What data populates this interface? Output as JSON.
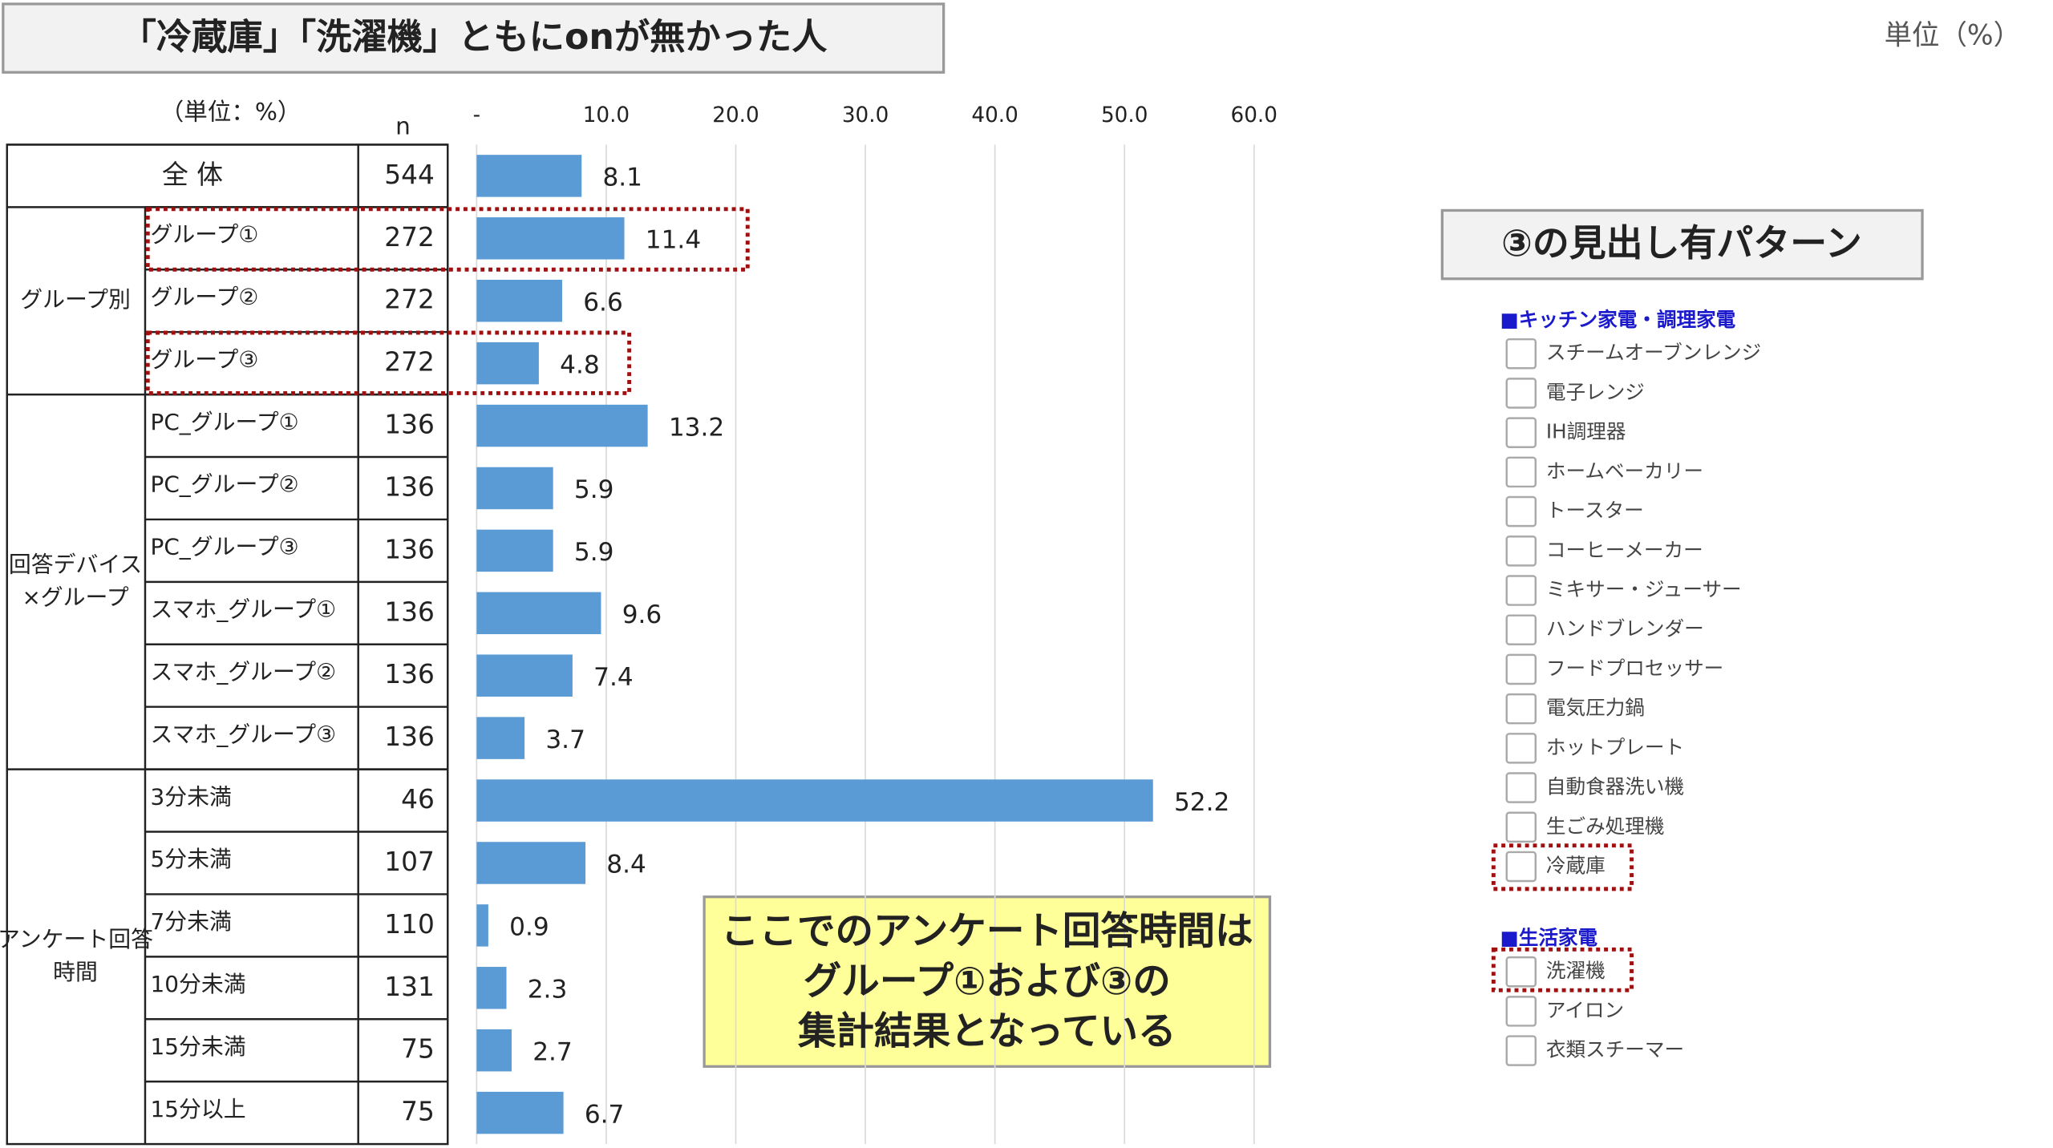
{
  "header": {
    "title": "「冷蔵庫」「洗濯機」ともにonが無かった人",
    "unit": "単位（%）"
  },
  "table": {
    "unit_label": "（単位：%）",
    "n_label": "n",
    "n": [
      544,
      272,
      272,
      272,
      136,
      136,
      136,
      136,
      136,
      136,
      46,
      107,
      110,
      131,
      75,
      75
    ],
    "groups": [
      {
        "lines": [
          "グループ別"
        ]
      },
      {
        "lines": [
          "回答デバイス",
          "×グループ"
        ]
      },
      {
        "lines": [
          "アンケート回答",
          "時間"
        ]
      }
    ]
  },
  "chart_data": {
    "type": "bar",
    "orientation": "horizontal",
    "color": "#5b9bd5",
    "categories": [
      "全 体",
      "グループ①",
      "グループ②",
      "グループ③",
      "PC_グループ①",
      "PC_グループ②",
      "PC_グループ③",
      "スマホ_グループ①",
      "スマホ_グループ②",
      "スマホ_グループ③",
      "3分未満",
      "5分未満",
      "7分未満",
      "10分未満",
      "15分未満",
      "15分以上"
    ],
    "values": [
      8.1,
      11.4,
      6.6,
      4.8,
      13.2,
      5.9,
      5.9,
      9.6,
      7.4,
      3.7,
      52.2,
      8.4,
      0.9,
      2.3,
      2.7,
      6.7
    ],
    "xlim": [
      0,
      60
    ],
    "xticks": [
      {
        "value": 0,
        "label": "-"
      },
      {
        "value": 10,
        "label": "10.0"
      },
      {
        "value": 20,
        "label": "20.0"
      },
      {
        "value": 30,
        "label": "30.0"
      },
      {
        "value": 40,
        "label": "40.0"
      },
      {
        "value": 50,
        "label": "50.0"
      },
      {
        "value": 60,
        "label": "60.0"
      }
    ],
    "grid": true
  },
  "callout": {
    "lines": [
      "ここでのアンケート回答時間は",
      "グループ①および③の",
      "集計結果となっている"
    ]
  },
  "side_panel": {
    "title": "③の見出し有パターン",
    "sections": [
      {
        "heading": "■キッチン家電・調理家電",
        "items": [
          "スチームオーブンレンジ",
          "電子レンジ",
          "IH調理器",
          "ホームベーカリー",
          "トースター",
          "コーヒーメーカー",
          "ミキサー・ジューサー",
          "ハンドブレンダー",
          "フードプロセッサー",
          "電気圧力鍋",
          "ホットプレート",
          "自動食器洗い機",
          "生ごみ処理機",
          "冷蔵庫"
        ]
      },
      {
        "heading": "■生活家電",
        "items": [
          "洗濯機",
          "アイロン",
          "衣類スチーマー"
        ]
      }
    ]
  }
}
